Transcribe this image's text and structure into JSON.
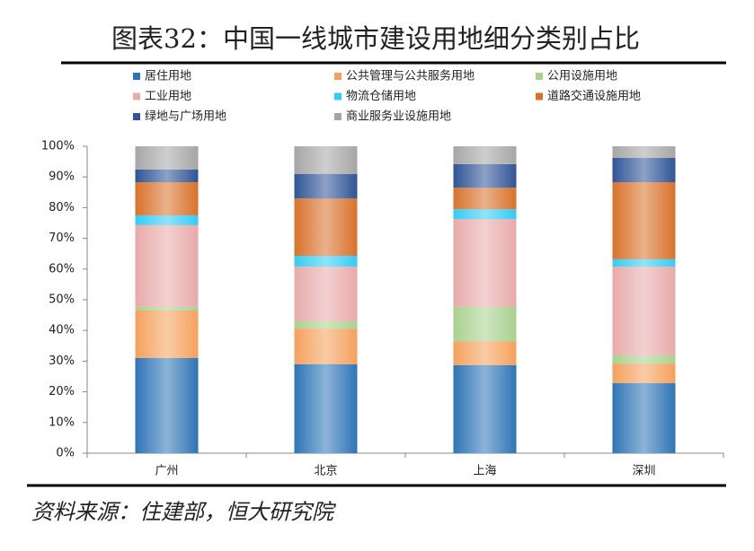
{
  "chart_data": {
    "type": "stacked_bar",
    "title": "图表32：中国一线城市建设用地细分类别占比",
    "source": "资料来源：住建部，恒大研究院",
    "categories": [
      "广州",
      "北京",
      "上海",
      "深圳"
    ],
    "series": [
      {
        "name": "居住用地",
        "color": "#2e75b6",
        "values": [
          31.0,
          29.0,
          28.7,
          22.8
        ]
      },
      {
        "name": "公共管理与公共服务用地",
        "color": "#f4a15d",
        "values": [
          15.5,
          11.6,
          7.8,
          6.4
        ]
      },
      {
        "name": "公用设施用地",
        "color": "#a9d18e",
        "values": [
          1.2,
          2.4,
          11.2,
          2.7
        ]
      },
      {
        "name": "工业用地",
        "color": "#e8aaaa",
        "values": [
          26.6,
          17.8,
          28.6,
          28.9
        ]
      },
      {
        "name": "物流仓储用地",
        "color": "#33ccf5",
        "values": [
          3.2,
          3.5,
          3.2,
          2.4
        ]
      },
      {
        "name": "道路交通设施用地",
        "color": "#d8722b",
        "values": [
          10.8,
          18.7,
          7.0,
          25.1
        ]
      },
      {
        "name": "绿地与广场用地",
        "color": "#2f5597",
        "values": [
          4.1,
          8.0,
          7.7,
          7.9
        ]
      },
      {
        "name": "商业服务业设施用地",
        "color": "#a6a6a6",
        "values": [
          7.6,
          9.0,
          5.8,
          3.8
        ]
      }
    ],
    "ylim": [
      0,
      100
    ],
    "yticks": [
      {
        "value": 0,
        "label": "0%"
      },
      {
        "value": 10,
        "label": "10%"
      },
      {
        "value": 20,
        "label": "20%"
      },
      {
        "value": 30,
        "label": "30%"
      },
      {
        "value": 40,
        "label": "40%"
      },
      {
        "value": 50,
        "label": "50%"
      },
      {
        "value": 60,
        "label": "60%"
      },
      {
        "value": 70,
        "label": "70%"
      },
      {
        "value": 80,
        "label": "80%"
      },
      {
        "value": 90,
        "label": "90%"
      },
      {
        "value": 100,
        "label": "100%"
      }
    ]
  }
}
